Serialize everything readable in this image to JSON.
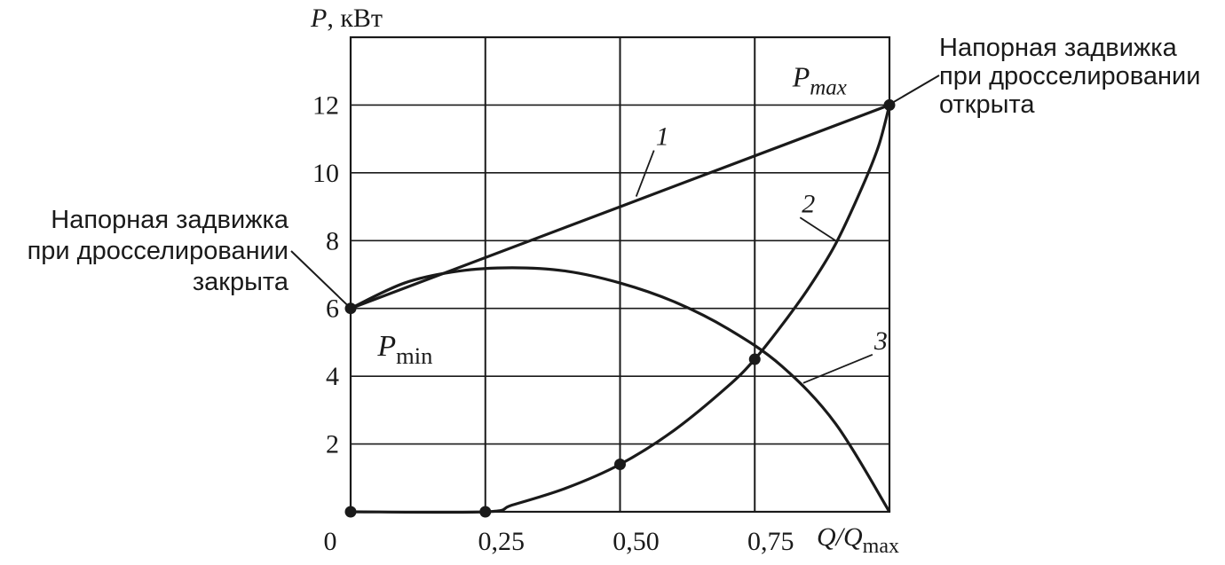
{
  "chart_data": {
    "type": "line",
    "ylabel": {
      "symbol": "P",
      "unit": ", кВт"
    },
    "xlabel": {
      "symbol": "Q/Q",
      "sub": "max"
    },
    "x_ticks": [
      "0",
      "0,25",
      "0,50",
      "0,75"
    ],
    "x_tick_values": [
      0,
      0.25,
      0.5,
      0.75
    ],
    "y_ticks": [
      "2",
      "4",
      "6",
      "8",
      "10",
      "12"
    ],
    "y_tick_values": [
      2,
      4,
      6,
      8,
      10,
      12
    ],
    "xlim": [
      0,
      1
    ],
    "ylim": [
      0,
      14
    ],
    "grid": true,
    "series": [
      {
        "name": "1",
        "x": [
          0,
          1
        ],
        "y": [
          6,
          12
        ]
      },
      {
        "name": "2",
        "x": [
          0,
          0.25,
          0.3,
          0.4,
          0.5,
          0.6,
          0.7,
          0.75,
          0.8,
          0.85,
          0.9,
          0.95,
          0.98,
          1.0
        ],
        "y": [
          0,
          0,
          0.2,
          0.7,
          1.4,
          2.4,
          3.7,
          4.5,
          5.5,
          6.6,
          7.9,
          9.6,
          10.8,
          12
        ]
      },
      {
        "name": "3",
        "x": [
          0,
          0.1,
          0.2,
          0.3,
          0.4,
          0.5,
          0.6,
          0.7,
          0.8,
          0.9,
          1.0
        ],
        "y": [
          6,
          6.75,
          7.1,
          7.2,
          7.1,
          6.75,
          6.2,
          5.4,
          4.3,
          2.6,
          0
        ]
      }
    ],
    "markers": [
      {
        "x": 0,
        "y": 6
      },
      {
        "x": 1,
        "y": 12
      },
      {
        "x": 0,
        "y": 0
      },
      {
        "x": 0.25,
        "y": 0
      },
      {
        "x": 0.5,
        "y": 1.4
      },
      {
        "x": 0.75,
        "y": 4.5
      }
    ],
    "annotations": {
      "p_min": {
        "symbol": "P",
        "sub": "min",
        "x": 0.05,
        "y": 4.6
      },
      "p_max": {
        "symbol": "P",
        "sub": "max",
        "x": 0.82,
        "y": 12.55
      },
      "closed": {
        "lines": [
          "Напорная задвижка",
          "при дросселировании",
          "закрыта"
        ],
        "target": {
          "x": 0,
          "y": 6
        }
      },
      "open": {
        "lines": [
          "Напорная задвижка",
          "при дросселировании",
          "открыта"
        ],
        "target": {
          "x": 1,
          "y": 12
        }
      },
      "curve_labels": [
        {
          "text": "1",
          "target": {
            "x": 0.53,
            "y": 9.3
          }
        },
        {
          "text": "2",
          "target": {
            "x": 0.9,
            "y": 8.0
          }
        },
        {
          "text": "3",
          "target": {
            "x": 0.84,
            "y": 3.8
          }
        }
      ]
    }
  }
}
